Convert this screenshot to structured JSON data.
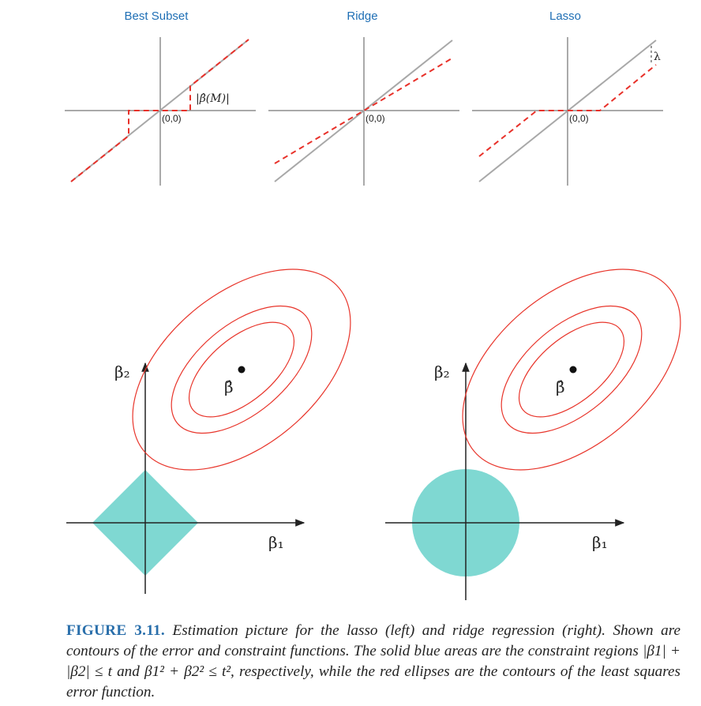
{
  "top_panels": {
    "best_subset": {
      "title": "Best Subset",
      "origin_label": "(0,0)",
      "annotation": "|β̂(M)|"
    },
    "ridge": {
      "title": "Ridge",
      "origin_label": "(0,0)"
    },
    "lasso": {
      "title": "Lasso",
      "origin_label": "(0,0)",
      "annotation": "λ"
    }
  },
  "bottom_panels": {
    "lasso": {
      "y_axis_label": "β₂",
      "x_axis_label": "β₁",
      "estimate_label": "β̂",
      "constraint_shape": "diamond"
    },
    "ridge": {
      "y_axis_label": "β₂",
      "x_axis_label": "β₁",
      "estimate_label": "β̂",
      "constraint_shape": "disk"
    }
  },
  "colors": {
    "title_blue": "#1f6fb5",
    "reference_line": "#a8a8a8",
    "estimate_dashed": "#e8312a",
    "contour": "#e8352b",
    "constraint_fill": "#7fd8d2",
    "caption_label": "#2a6fab"
  },
  "caption": {
    "label": "FIGURE 3.11.",
    "text": "Estimation picture for the lasso (left) and ridge regression (right). Shown are contours of the error and constraint functions. The solid blue areas are the constraint regions |β1| + |β2| ≤ t and β1² + β2² ≤ t², respectively, while the red ellipses are the contours of the least squares error function."
  }
}
